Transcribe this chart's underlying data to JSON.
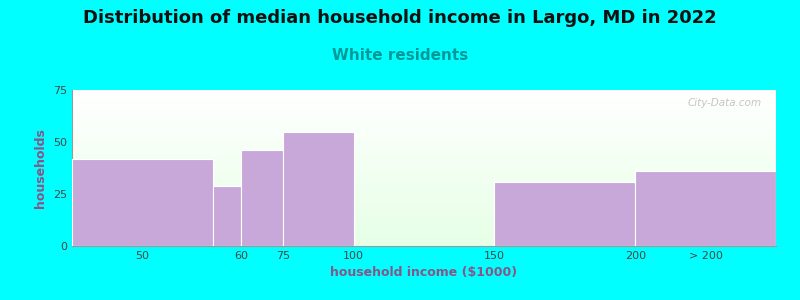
{
  "title": "Distribution of median household income in Largo, MD in 2022",
  "subtitle": "White residents",
  "xlabel": "household income ($1000)",
  "ylabel": "households",
  "background_color": "#00FFFF",
  "bar_color": "#c8a8d8",
  "highlight_bar_color": "#ddf0dd",
  "categories": [
    "50",
    "60",
    "75",
    "100",
    "150",
    "200",
    "> 200"
  ],
  "values": [
    42,
    29,
    46,
    55,
    0,
    31,
    36
  ],
  "highlight_index": 4,
  "ylim": [
    0,
    75
  ],
  "yticks": [
    0,
    25,
    50,
    75
  ],
  "title_fontsize": 13,
  "subtitle_fontsize": 11,
  "subtitle_color": "#009999",
  "axis_label_fontsize": 9,
  "axis_label_color": "#885588",
  "tick_fontsize": 8,
  "tick_color": "#444444",
  "watermark": "City-Data.com",
  "x_ticks_pos": [
    0,
    50,
    60,
    75,
    100,
    150,
    200,
    250
  ],
  "xtick_label_positions": [
    25,
    60,
    75,
    100,
    150,
    200,
    225
  ],
  "xlim": [
    0,
    250
  ]
}
